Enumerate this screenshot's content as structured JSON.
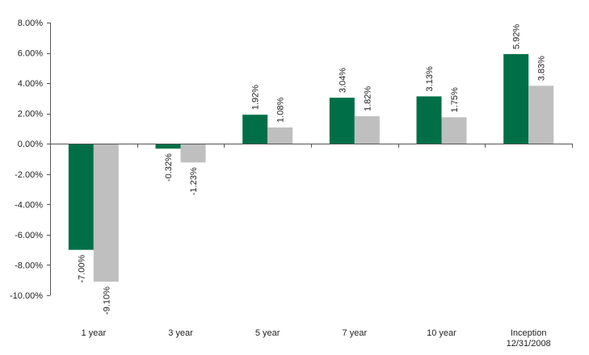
{
  "chart_data": {
    "type": "bar",
    "categories": [
      [
        "1 year"
      ],
      [
        "3 year"
      ],
      [
        "5 year"
      ],
      [
        "7 year"
      ],
      [
        "10 year"
      ],
      [
        "Inception",
        "12/31/2008"
      ]
    ],
    "series": [
      {
        "values": [
          -7.0,
          -0.32,
          1.92,
          3.04,
          3.13,
          5.92
        ],
        "labels": [
          "-7.00%",
          "-0.32%",
          "1.92%",
          "3.04%",
          "3.13%",
          "5.92%"
        ],
        "color": "#006f47"
      },
      {
        "values": [
          -9.1,
          -1.23,
          1.08,
          1.82,
          1.75,
          3.83
        ],
        "labels": [
          "-9.10%",
          "-1.23%",
          "1.08%",
          "1.82%",
          "1.75%",
          "3.83%"
        ],
        "color": "#bfbfbf"
      }
    ],
    "ylim": [
      -10,
      8
    ],
    "yticks": [
      8,
      6,
      4,
      2,
      0,
      -2,
      -4,
      -6,
      -8,
      -10
    ],
    "ytick_labels": [
      "8.00%",
      "6.00%",
      "4.00%",
      "2.00%",
      "0.00%",
      "-2.00%",
      "-4.00%",
      "-6.00%",
      "-8.00%",
      "-10.00%"
    ],
    "title": "",
    "xlabel": "",
    "ylabel": "",
    "grid": false,
    "legend": "none"
  }
}
